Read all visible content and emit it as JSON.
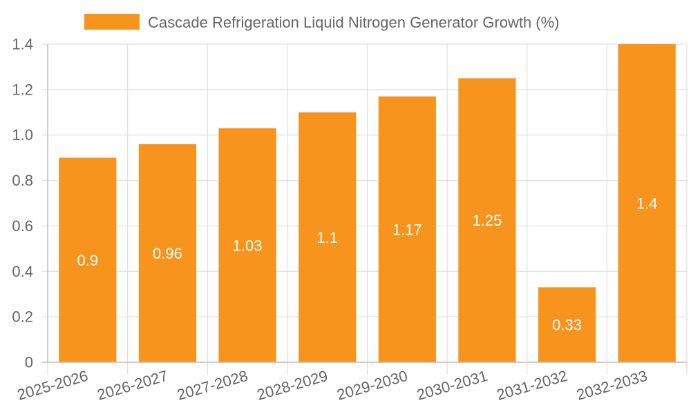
{
  "chart_data": {
    "type": "bar",
    "categories": [
      "2025-2026",
      "2026-2027",
      "2027-2028",
      "2028-2029",
      "2029-2030",
      "2030-2031",
      "2031-2032",
      "2032-2033"
    ],
    "series": [
      {
        "name": "Cascade Refrigeration Liquid Nitrogen Generator Growth (%)",
        "values": [
          0.9,
          0.96,
          1.03,
          1.1,
          1.17,
          1.25,
          0.33,
          1.4
        ],
        "color": "#f7941e"
      }
    ],
    "data_labels": [
      "0.9",
      "0.96",
      "1.03",
      "1.1",
      "1.17",
      "1.25",
      "0.33",
      "1.4"
    ],
    "ylim": [
      0,
      1.4
    ],
    "y_ticks": [
      0,
      0.2,
      0.4,
      0.6,
      0.8,
      1.0,
      1.2,
      1.4
    ],
    "y_tick_labels": [
      "0",
      "0.2",
      "0.4",
      "0.6",
      "0.8",
      "1.0",
      "1.2",
      "1.4"
    ],
    "x_tick_rotation": "rotated",
    "grid": true,
    "legend_position": "top",
    "colors": {
      "bar": "#f7941e",
      "grid": "#e0e0e0",
      "text": "#666666",
      "value_label": "#ffffff"
    }
  }
}
